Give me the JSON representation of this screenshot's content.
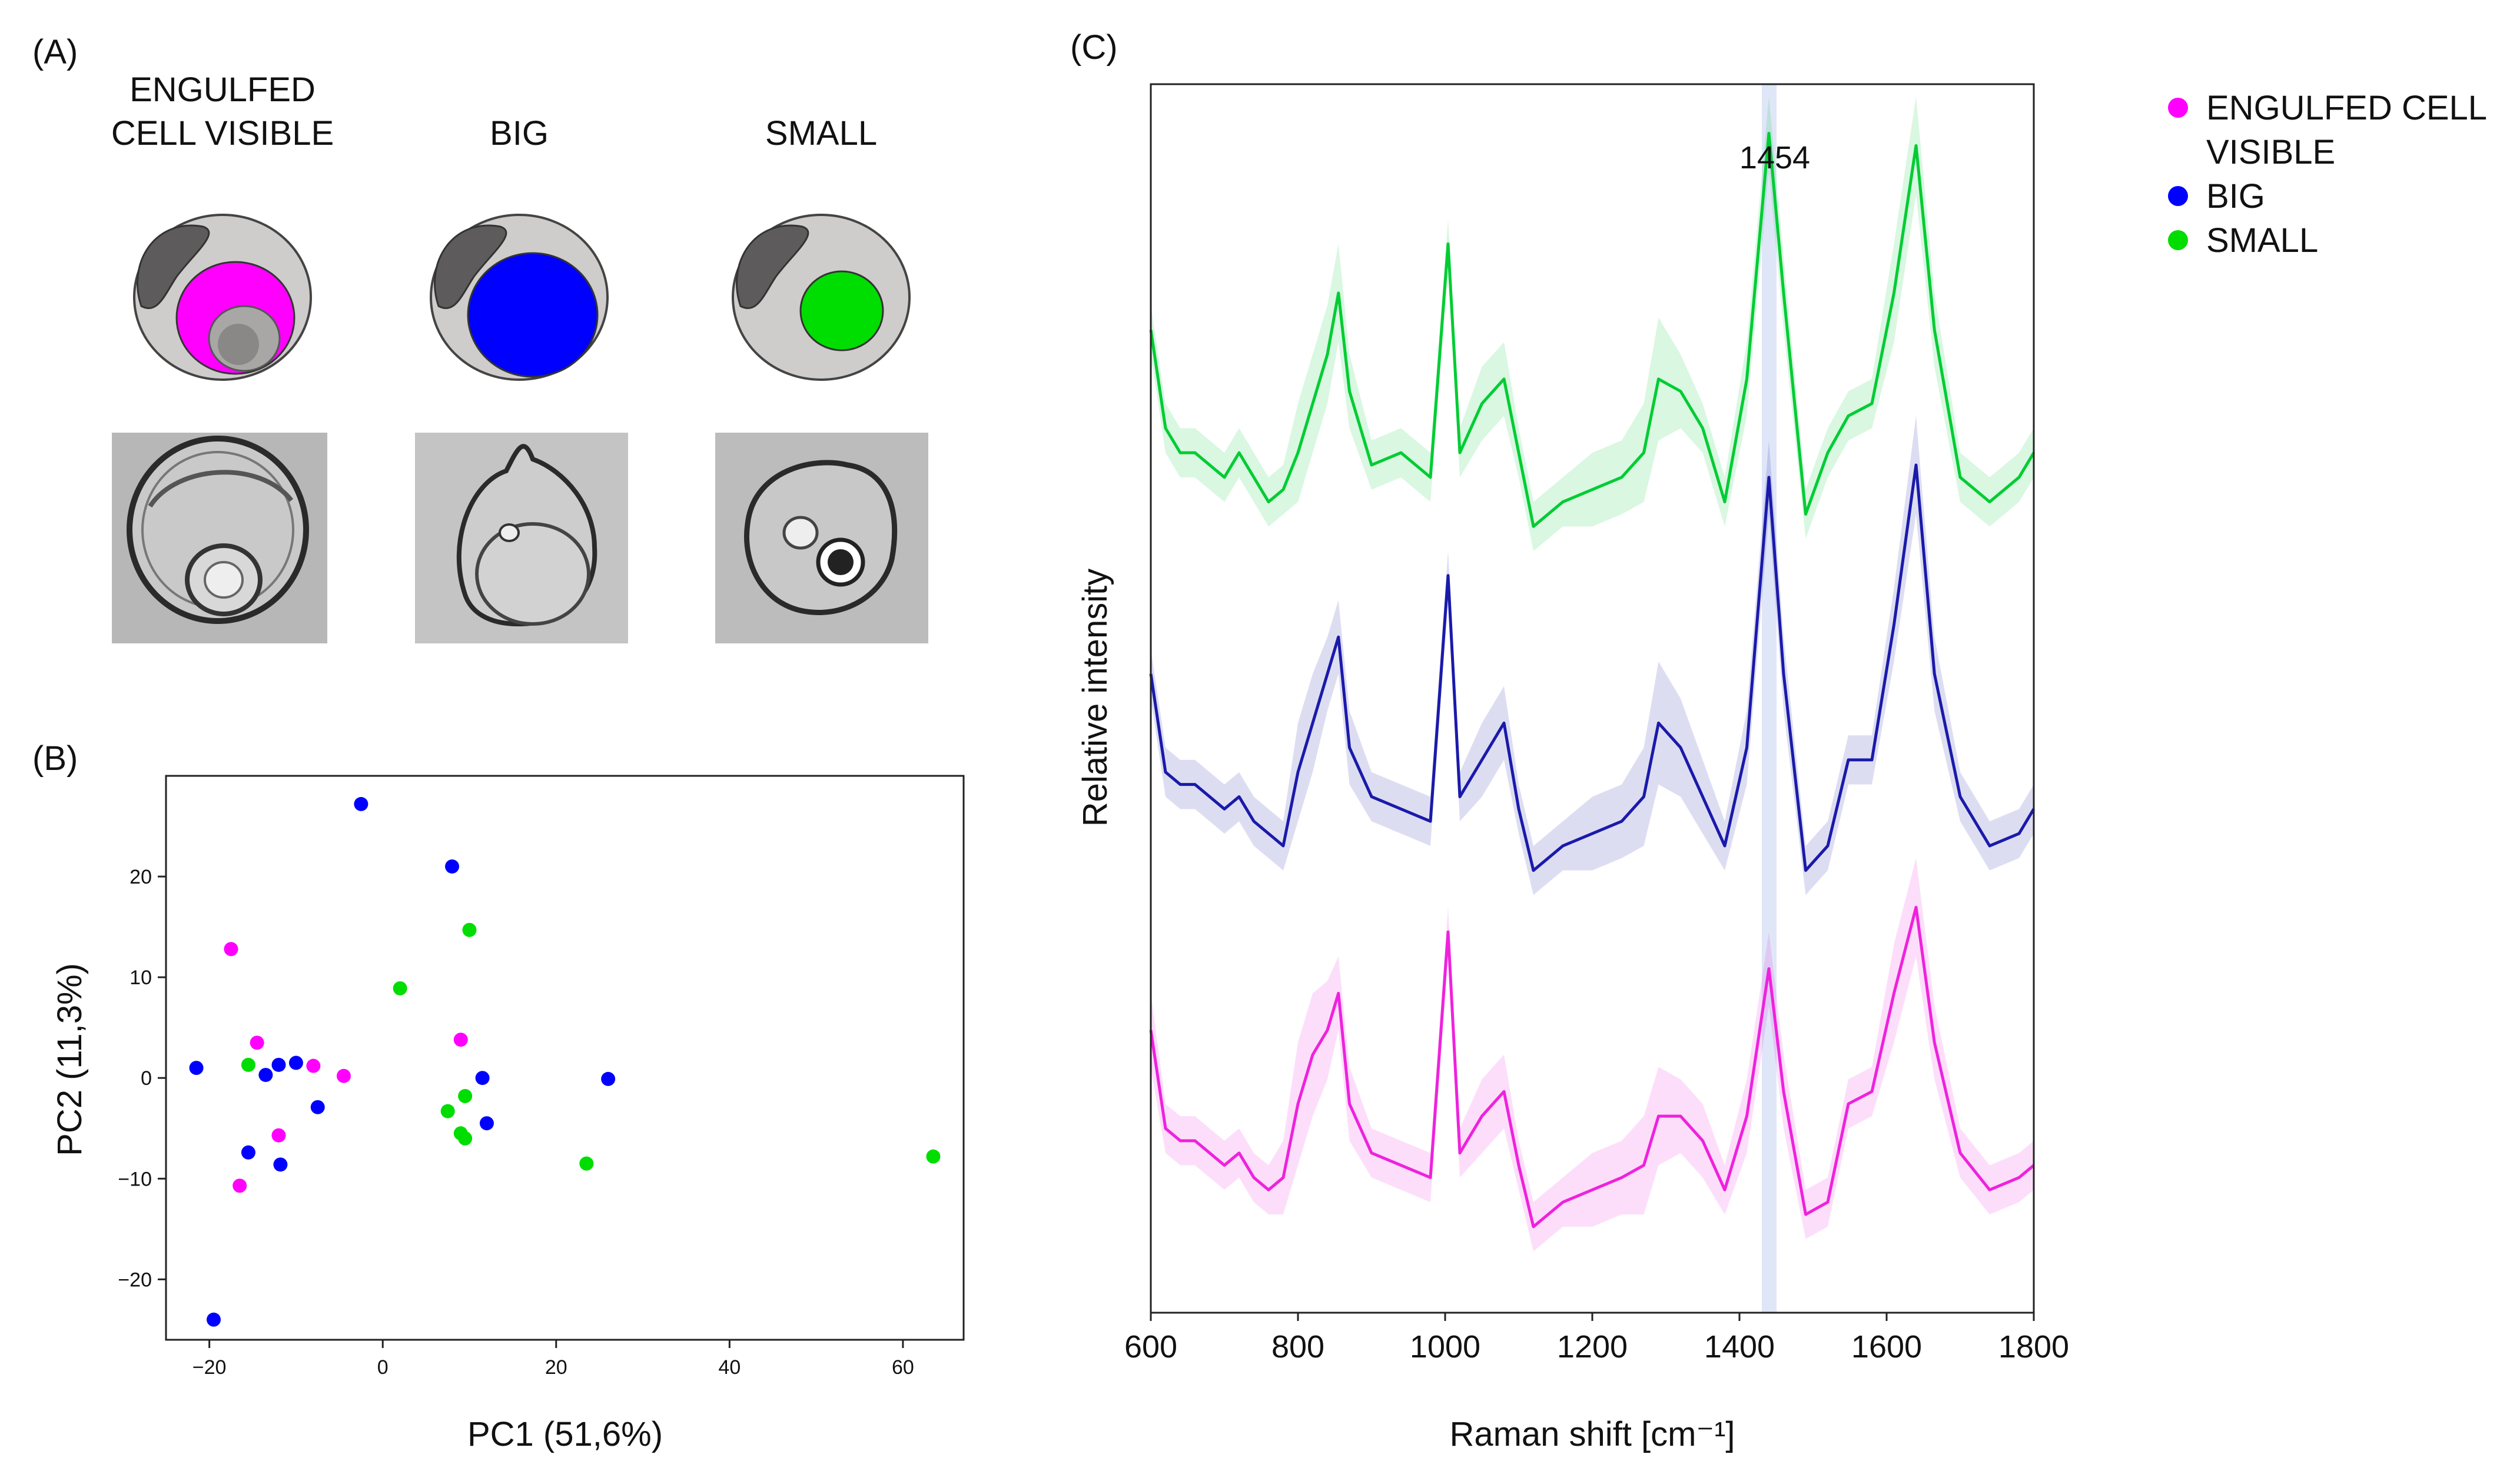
{
  "figure": {
    "panel_a": {
      "label": "(A)",
      "columns": [
        {
          "id": "engulfed",
          "title_lines": [
            "ENGULFED",
            "CELL VISIBLE"
          ],
          "fill": "#ff00ff"
        },
        {
          "id": "big",
          "title_lines": [
            "BIG"
          ],
          "fill": "#0000ff"
        },
        {
          "id": "small",
          "title_lines": [
            "SMALL"
          ],
          "fill": "#00dd00"
        }
      ]
    },
    "panel_b": {
      "label": "(B)"
    },
    "panel_c": {
      "label": "(C)"
    },
    "legend": {
      "items": [
        {
          "label_lines": [
            "ENGULFED CELL",
            "VISIBLE"
          ],
          "color": "#ff00ff"
        },
        {
          "label_lines": [
            "BIG"
          ],
          "color": "#0000ff"
        },
        {
          "label_lines": [
            "SMALL"
          ],
          "color": "#00dd00"
        }
      ]
    }
  },
  "chart_data": [
    {
      "type": "scatter",
      "panel": "B",
      "xlabel": "PC1 (51,6%)",
      "ylabel": "PC2 (11,3%)",
      "xlim": [
        -25,
        67
      ],
      "ylim": [
        -26,
        30
      ],
      "xticks": [
        -20,
        0,
        20,
        40,
        60
      ],
      "yticks": [
        -20,
        -10,
        0,
        10,
        20
      ],
      "xtick_labels": [
        "−20",
        "0",
        "20",
        "40",
        "60"
      ],
      "ytick_labels": [
        "−20",
        "−10",
        "0",
        "10",
        "20"
      ],
      "series": [
        {
          "name": "ENGULFED CELL VISIBLE",
          "color": "#ff00ff",
          "points": [
            [
              -17.5,
              12.8
            ],
            [
              -14.5,
              3.5
            ],
            [
              -8,
              1.2
            ],
            [
              -4.5,
              0.2
            ],
            [
              -12,
              -5.7
            ],
            [
              -16.5,
              -10.7
            ],
            [
              9,
              3.8
            ]
          ]
        },
        {
          "name": "BIG",
          "color": "#0000ff",
          "points": [
            [
              -2.5,
              27.2
            ],
            [
              8,
              21
            ],
            [
              -21.5,
              1
            ],
            [
              -13.5,
              0.3
            ],
            [
              -12,
              1.3
            ],
            [
              -10,
              1.5
            ],
            [
              -7.5,
              -2.9
            ],
            [
              -15.5,
              -7.4
            ],
            [
              -11.8,
              -8.6
            ],
            [
              -19.5,
              -24
            ],
            [
              11.5,
              0
            ],
            [
              12,
              -4.5
            ],
            [
              26,
              -0.1
            ]
          ]
        },
        {
          "name": "SMALL",
          "color": "#00dd00",
          "points": [
            [
              10,
              14.7
            ],
            [
              2,
              8.9
            ],
            [
              -15.5,
              1.3
            ],
            [
              9.5,
              -1.8
            ],
            [
              7.5,
              -3.3
            ],
            [
              9,
              -5.5
            ],
            [
              9.5,
              -6
            ],
            [
              23.5,
              -8.5
            ],
            [
              63.5,
              -7.8
            ]
          ]
        }
      ]
    },
    {
      "type": "line",
      "panel": "C",
      "xlabel": "Raman shift [cm⁻¹]",
      "ylabel": "Relative intensity",
      "xlim": [
        600,
        1800
      ],
      "ylim": [
        0,
        1
      ],
      "xticks": [
        600,
        800,
        1000,
        1200,
        1400,
        1600,
        1800
      ],
      "xtick_labels": [
        "600",
        "800",
        "1000",
        "1200",
        "1400",
        "1600",
        "1800"
      ],
      "annotation": {
        "label": "1454",
        "x": 1440
      },
      "series": [
        {
          "name": "SMALL",
          "color": "#00cc33",
          "x": [
            600,
            620,
            640,
            660,
            680,
            700,
            720,
            740,
            760,
            780,
            800,
            820,
            840,
            855,
            870,
            900,
            940,
            980,
            1004,
            1020,
            1050,
            1080,
            1100,
            1120,
            1140,
            1160,
            1200,
            1240,
            1270,
            1290,
            1320,
            1350,
            1380,
            1410,
            1440,
            1460,
            1490,
            1520,
            1548,
            1580,
            1610,
            1640,
            1665,
            1700,
            1740,
            1780,
            1800
          ],
          "values": [
            0.8,
            0.72,
            0.7,
            0.7,
            0.69,
            0.68,
            0.7,
            0.68,
            0.66,
            0.67,
            0.7,
            0.74,
            0.78,
            0.83,
            0.75,
            0.69,
            0.7,
            0.68,
            0.87,
            0.7,
            0.74,
            0.76,
            0.7,
            0.64,
            0.65,
            0.66,
            0.67,
            0.68,
            0.7,
            0.76,
            0.75,
            0.72,
            0.66,
            0.76,
            0.96,
            0.83,
            0.65,
            0.7,
            0.73,
            0.74,
            0.83,
            0.95,
            0.8,
            0.68,
            0.66,
            0.68,
            0.7
          ],
          "band": [
            0.02,
            0.02,
            0.02,
            0.02,
            0.02,
            0.02,
            0.02,
            0.02,
            0.02,
            0.02,
            0.04,
            0.04,
            0.04,
            0.04,
            0.03,
            0.02,
            0.02,
            0.02,
            0.02,
            0.02,
            0.03,
            0.03,
            0.02,
            0.02,
            0.02,
            0.02,
            0.03,
            0.03,
            0.04,
            0.05,
            0.03,
            0.02,
            0.02,
            0.03,
            0.03,
            0.03,
            0.02,
            0.02,
            0.02,
            0.02,
            0.04,
            0.04,
            0.03,
            0.02,
            0.02,
            0.02,
            0.02
          ]
        },
        {
          "name": "BIG",
          "color": "#1a1aaa",
          "x": [
            600,
            620,
            640,
            660,
            680,
            700,
            720,
            740,
            760,
            780,
            800,
            820,
            840,
            855,
            870,
            900,
            940,
            980,
            1004,
            1020,
            1050,
            1080,
            1100,
            1120,
            1140,
            1160,
            1200,
            1240,
            1270,
            1290,
            1320,
            1350,
            1380,
            1410,
            1440,
            1460,
            1490,
            1520,
            1548,
            1580,
            1610,
            1640,
            1665,
            1700,
            1740,
            1780,
            1800
          ],
          "values": [
            0.52,
            0.44,
            0.43,
            0.43,
            0.42,
            0.41,
            0.42,
            0.4,
            0.39,
            0.38,
            0.44,
            0.48,
            0.52,
            0.55,
            0.46,
            0.42,
            0.41,
            0.4,
            0.6,
            0.42,
            0.45,
            0.48,
            0.41,
            0.36,
            0.37,
            0.38,
            0.39,
            0.4,
            0.42,
            0.48,
            0.46,
            0.42,
            0.38,
            0.46,
            0.68,
            0.52,
            0.36,
            0.38,
            0.45,
            0.45,
            0.56,
            0.69,
            0.52,
            0.42,
            0.38,
            0.39,
            0.41
          ],
          "band": [
            0.02,
            0.02,
            0.02,
            0.02,
            0.02,
            0.02,
            0.02,
            0.02,
            0.02,
            0.02,
            0.04,
            0.04,
            0.03,
            0.03,
            0.03,
            0.02,
            0.02,
            0.02,
            0.02,
            0.02,
            0.03,
            0.03,
            0.02,
            0.02,
            0.02,
            0.02,
            0.03,
            0.03,
            0.04,
            0.05,
            0.04,
            0.03,
            0.02,
            0.03,
            0.03,
            0.03,
            0.02,
            0.02,
            0.02,
            0.02,
            0.03,
            0.04,
            0.03,
            0.02,
            0.02,
            0.02,
            0.02
          ]
        },
        {
          "name": "ENGULFED CELL VISIBLE",
          "color": "#ee22dd",
          "x": [
            600,
            620,
            640,
            660,
            680,
            700,
            720,
            740,
            760,
            780,
            800,
            820,
            840,
            855,
            870,
            900,
            940,
            980,
            1004,
            1020,
            1050,
            1080,
            1100,
            1120,
            1140,
            1160,
            1200,
            1240,
            1270,
            1290,
            1320,
            1350,
            1380,
            1410,
            1440,
            1460,
            1490,
            1520,
            1548,
            1580,
            1610,
            1640,
            1665,
            1700,
            1740,
            1780,
            1800
          ],
          "values": [
            0.23,
            0.15,
            0.14,
            0.14,
            0.13,
            0.12,
            0.13,
            0.11,
            0.1,
            0.11,
            0.17,
            0.21,
            0.23,
            0.26,
            0.17,
            0.13,
            0.12,
            0.11,
            0.31,
            0.13,
            0.16,
            0.18,
            0.12,
            0.07,
            0.08,
            0.09,
            0.1,
            0.11,
            0.12,
            0.16,
            0.16,
            0.14,
            0.1,
            0.16,
            0.28,
            0.18,
            0.08,
            0.09,
            0.17,
            0.18,
            0.26,
            0.33,
            0.22,
            0.13,
            0.1,
            0.11,
            0.12
          ],
          "band": [
            0.03,
            0.02,
            0.02,
            0.02,
            0.02,
            0.02,
            0.02,
            0.02,
            0.02,
            0.03,
            0.05,
            0.05,
            0.04,
            0.03,
            0.03,
            0.02,
            0.02,
            0.02,
            0.02,
            0.02,
            0.03,
            0.03,
            0.02,
            0.02,
            0.02,
            0.02,
            0.03,
            0.03,
            0.04,
            0.04,
            0.03,
            0.03,
            0.02,
            0.03,
            0.03,
            0.03,
            0.02,
            0.02,
            0.02,
            0.02,
            0.04,
            0.04,
            0.03,
            0.02,
            0.02,
            0.02,
            0.02
          ]
        }
      ]
    }
  ]
}
